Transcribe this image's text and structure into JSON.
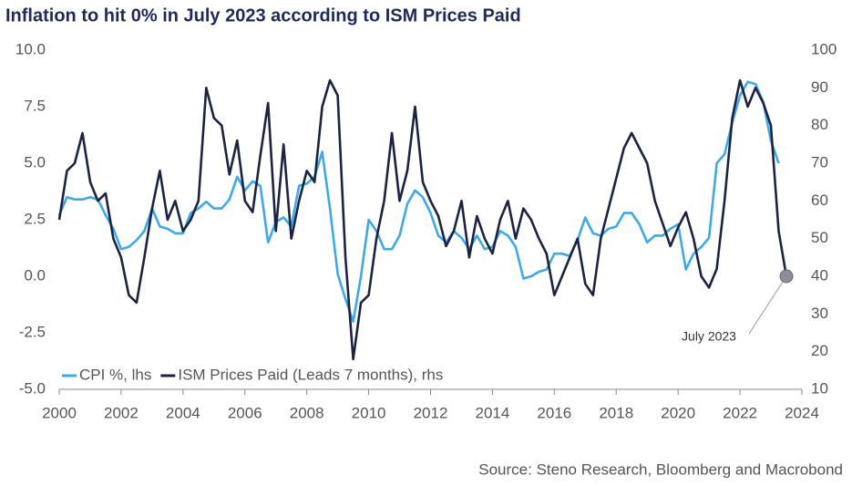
{
  "chart_data": {
    "type": "line",
    "title": "Inflation to hit 0% in July 2023 according to ISM Prices Paid",
    "source": "Source: Steno Research, Bloomberg and Macrobond",
    "annotation": "July 2023",
    "x": [
      2000,
      2000.25,
      2000.5,
      2000.75,
      2001,
      2001.25,
      2001.5,
      2001.75,
      2002,
      2002.25,
      2002.5,
      2002.75,
      2003,
      2003.25,
      2003.5,
      2003.75,
      2004,
      2004.25,
      2004.5,
      2004.75,
      2005,
      2005.25,
      2005.5,
      2005.75,
      2006,
      2006.25,
      2006.5,
      2006.75,
      2007,
      2007.25,
      2007.5,
      2007.75,
      2008,
      2008.25,
      2008.5,
      2008.75,
      2009,
      2009.25,
      2009.5,
      2009.75,
      2010,
      2010.25,
      2010.5,
      2010.75,
      2011,
      2011.25,
      2011.5,
      2011.75,
      2012,
      2012.25,
      2012.5,
      2012.75,
      2013,
      2013.25,
      2013.5,
      2013.75,
      2014,
      2014.25,
      2014.5,
      2014.75,
      2015,
      2015.25,
      2015.5,
      2015.75,
      2016,
      2016.25,
      2016.5,
      2016.75,
      2017,
      2017.25,
      2017.5,
      2017.75,
      2018,
      2018.25,
      2018.5,
      2018.75,
      2019,
      2019.25,
      2019.5,
      2019.75,
      2020,
      2020.25,
      2020.5,
      2020.75,
      2021,
      2021.25,
      2021.5,
      2021.75,
      2022,
      2022.25,
      2022.5,
      2022.75,
      2023,
      2023.25,
      2023.5
    ],
    "series": [
      {
        "name": "CPI %, lhs",
        "color": "#3fa9e8",
        "axis": "y",
        "values": [
          2.7,
          3.5,
          3.4,
          3.4,
          3.5,
          3.4,
          2.7,
          2.1,
          1.2,
          1.3,
          1.6,
          2.0,
          3.0,
          2.2,
          2.1,
          1.9,
          1.9,
          2.8,
          3.0,
          3.3,
          3.0,
          3.0,
          3.4,
          4.4,
          3.8,
          4.2,
          4.0,
          1.5,
          2.4,
          2.6,
          2.2,
          4.0,
          4.1,
          4.4,
          5.5,
          3.0,
          0.1,
          -1.0,
          -2.0,
          0.0,
          2.5,
          2.0,
          1.2,
          1.2,
          1.8,
          3.2,
          3.8,
          3.5,
          2.8,
          1.8,
          1.5,
          2.0,
          1.7,
          1.2,
          1.8,
          1.2,
          1.3,
          2.0,
          1.8,
          1.3,
          -0.1,
          0.0,
          0.2,
          0.3,
          1.0,
          1.0,
          0.9,
          1.6,
          2.6,
          1.9,
          1.8,
          2.1,
          2.2,
          2.8,
          2.8,
          2.3,
          1.5,
          1.8,
          1.8,
          2.1,
          2.3,
          0.3,
          1.0,
          1.3,
          1.7,
          5.0,
          5.4,
          6.8,
          8.0,
          8.6,
          8.5,
          7.7,
          6.0,
          5.0,
          null
        ]
      },
      {
        "name": "ISM Prices Paid (Leads 7 months), rhs",
        "color": "#1c2340",
        "axis": "y2",
        "values": [
          55,
          68,
          70,
          78,
          65,
          60,
          62,
          50,
          45,
          35,
          33,
          45,
          58,
          68,
          55,
          60,
          52,
          55,
          60,
          90,
          82,
          80,
          67,
          76,
          60,
          57,
          72,
          86,
          52,
          75,
          50,
          60,
          68,
          65,
          85,
          92,
          88,
          45,
          18,
          33,
          35,
          50,
          60,
          78,
          60,
          68,
          85,
          65,
          60,
          56,
          48,
          52,
          60,
          45,
          56,
          50,
          46,
          55,
          60,
          50,
          58,
          55,
          50,
          46,
          35,
          40,
          45,
          50,
          38,
          35,
          50,
          58,
          66,
          74,
          78,
          74,
          70,
          60,
          54,
          48,
          53,
          57,
          50,
          40,
          37,
          42,
          60,
          82,
          92,
          85,
          90,
          86,
          80,
          52,
          40
        ]
      }
    ],
    "xlim": [
      2000,
      2024
    ],
    "xticks": [
      2000,
      2002,
      2004,
      2006,
      2008,
      2010,
      2012,
      2014,
      2016,
      2018,
      2020,
      2022,
      2024
    ],
    "ylim": [
      -5,
      10
    ],
    "yticks": [
      {
        "value": -5,
        "label": "-5.0"
      },
      -2.5,
      {
        "value": 0,
        "label": "0.0"
      },
      2.5,
      {
        "value": 5,
        "label": "5.0"
      },
      7.5,
      {
        "value": 10,
        "label": "10.0"
      }
    ],
    "y2lim": [
      10,
      100
    ],
    "y2ticks": [
      10,
      20,
      30,
      40,
      50,
      60,
      70,
      80,
      90,
      100
    ],
    "legend": "lower left",
    "grid": false
  }
}
